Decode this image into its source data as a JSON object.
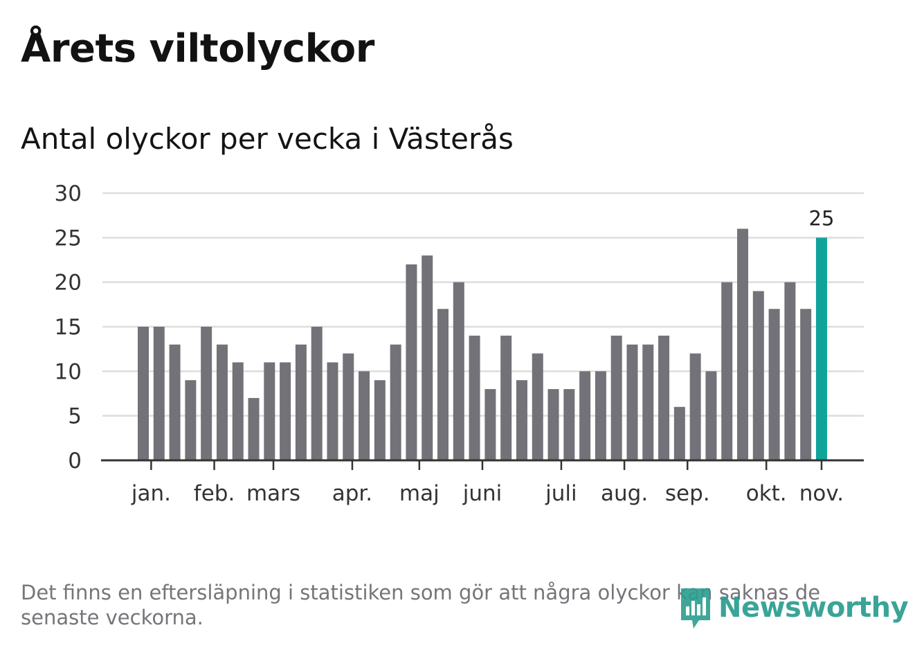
{
  "title": "Årets viltolyckor",
  "subtitle": "Antal olyckor per vecka i Västerås",
  "note": "Det finns en eftersläpning i statistiken som gör att några olyckor kan saknas de senaste veckorna.",
  "brand": {
    "name": "Newsworthy",
    "icon": "newsworthy-logo-icon"
  },
  "colors": {
    "bar": "#727278",
    "highlight": "#10a39a",
    "grid": "#dddddd",
    "axis": "#333333"
  },
  "chart_data": {
    "type": "bar",
    "title": "Antal olyckor per vecka i Västerås",
    "xlabel": "",
    "ylabel": "",
    "ylim": [
      0,
      30
    ],
    "yticks": [
      0,
      5,
      10,
      15,
      20,
      25,
      30
    ],
    "grid": true,
    "values": [
      15,
      15,
      13,
      9,
      15,
      13,
      11,
      7,
      11,
      11,
      13,
      15,
      11,
      12,
      10,
      9,
      13,
      22,
      23,
      17,
      20,
      14,
      8,
      14,
      9,
      12,
      8,
      8,
      10,
      10,
      14,
      13,
      13,
      14,
      6,
      12,
      10,
      20,
      26,
      19,
      17,
      20,
      17,
      25
    ],
    "highlight_index": 43,
    "data_labels": [
      {
        "index": 43,
        "text": "25"
      }
    ],
    "month_labels": [
      {
        "label": "jan.",
        "bar": 0.5
      },
      {
        "label": "feb.",
        "bar": 4.5
      },
      {
        "label": "mars",
        "bar": 8.25
      },
      {
        "label": "apr.",
        "bar": 13.25
      },
      {
        "label": "maj",
        "bar": 17.5
      },
      {
        "label": "juni",
        "bar": 21.5
      },
      {
        "label": "juli",
        "bar": 26.5
      },
      {
        "label": "aug.",
        "bar": 30.5
      },
      {
        "label": "sep.",
        "bar": 34.5
      },
      {
        "label": "okt.",
        "bar": 39.5
      },
      {
        "label": "nov.",
        "bar": 43.0
      }
    ]
  }
}
